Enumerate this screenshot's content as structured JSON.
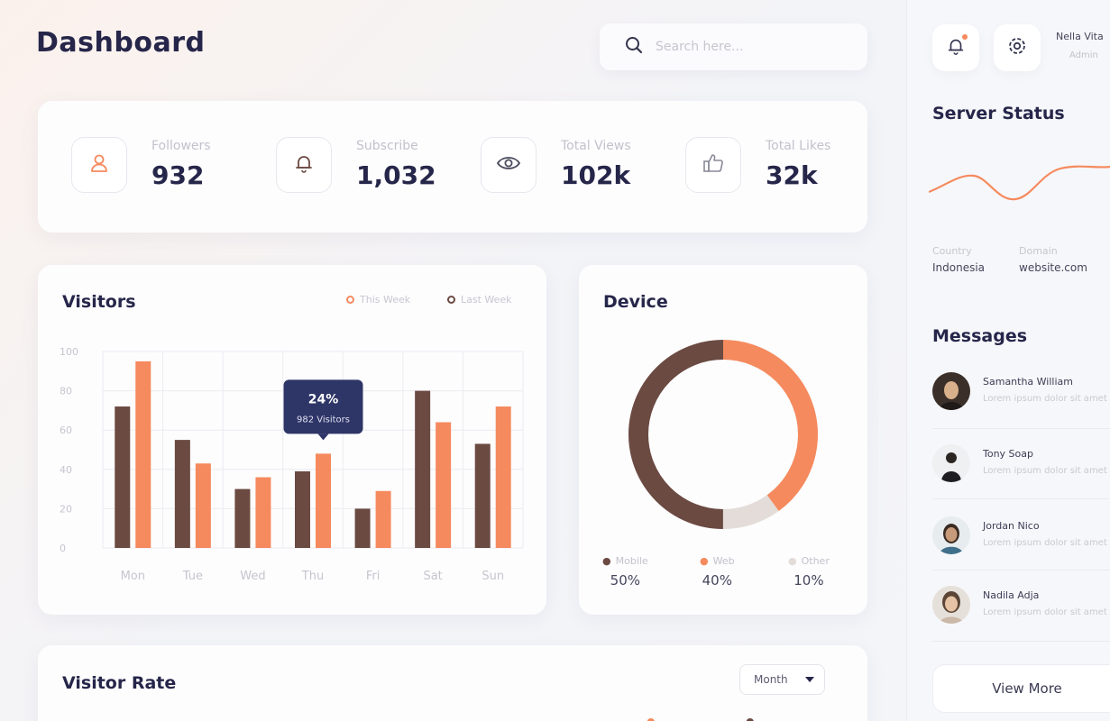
{
  "header": {
    "title": "Dashboard",
    "search_placeholder": "Search here..."
  },
  "stats": [
    {
      "label": "Followers",
      "value": "932",
      "icon": "user-icon"
    },
    {
      "label": "Subscribe",
      "value": "1,032",
      "icon": "bell-icon"
    },
    {
      "label": "Total Views",
      "value": "102k",
      "icon": "eye-icon"
    },
    {
      "label": "Total Likes",
      "value": "32k",
      "icon": "thumbs-up-icon"
    }
  ],
  "visitors": {
    "title": "Visitors",
    "legend": [
      {
        "name": "This Week",
        "color": "#f58a5e"
      },
      {
        "name": "Last Week",
        "color": "#6b4a42"
      }
    ],
    "tooltip": {
      "percent": "24%",
      "text": "982 Visitors"
    }
  },
  "chart_data": {
    "type": "bar",
    "categories": [
      "Mon",
      "Tue",
      "Wed",
      "Thu",
      "Fri",
      "Sat",
      "Sun"
    ],
    "series": [
      {
        "name": "Last Week",
        "color": "#6b4a42",
        "values": [
          72,
          55,
          30,
          39,
          20,
          80,
          53
        ]
      },
      {
        "name": "This Week",
        "color": "#f58a5e",
        "values": [
          95,
          43,
          36,
          48,
          29,
          64,
          72
        ]
      }
    ],
    "yticks": [
      "100",
      "80",
      "60",
      "40",
      "20",
      "0"
    ],
    "ylim": [
      0,
      100
    ],
    "grid": true
  },
  "device": {
    "title": "Device",
    "segments": [
      {
        "label": "Mobile",
        "percent": "50%",
        "value": 50,
        "color": "#6b4a42"
      },
      {
        "label": "Web",
        "percent": "40%",
        "value": 40,
        "color": "#f58a5e"
      },
      {
        "label": "Other",
        "percent": "10%",
        "value": 10,
        "color": "#e3dcd8"
      }
    ]
  },
  "visitor_rate": {
    "title": "Visitor Rate",
    "dropdown": "Month"
  },
  "user": {
    "name": "Nella Vita",
    "role": "Admin"
  },
  "server": {
    "title": "Server Status",
    "country_label": "Country",
    "country_value": "Indonesia",
    "domain_label": "Domain",
    "domain_value": "website.com"
  },
  "messages": {
    "title": "Messages",
    "items": [
      {
        "name": "Samantha William",
        "text": "Lorem ipsum dolor sit amet"
      },
      {
        "name": "Tony Soap",
        "text": "Lorem ipsum dolor sit amet"
      },
      {
        "name": "Jordan Nico",
        "text": "Lorem ipsum dolor sit amet"
      },
      {
        "name": "Nadila Adja",
        "text": "Lorem ipsum dolor sit amet"
      }
    ],
    "view_more": "View More"
  },
  "colors": {
    "accent": "#f58a5e",
    "brown": "#6b4a42",
    "navy": "#26264a"
  }
}
